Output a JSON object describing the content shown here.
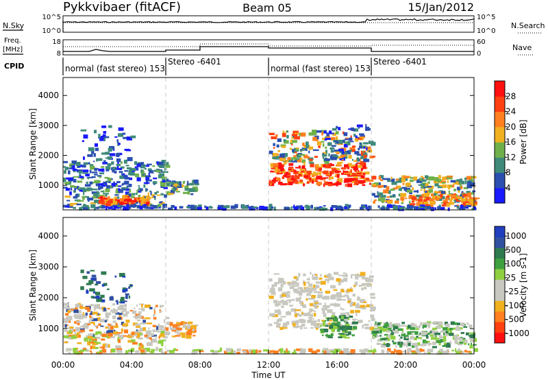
{
  "header": {
    "station": "Pykkvibaer (fitACF)",
    "beam": "Beam 05",
    "date": "15/Jan/2012"
  },
  "nsky_panel": {
    "left_label": "N.Sky",
    "left_ticks": [
      "10^5",
      "10^0"
    ],
    "right_ticks": [
      "10^5",
      "10^0"
    ],
    "right_label": "N.Search"
  },
  "freq_panel": {
    "left_label_top": "Freq.",
    "left_label_bottom": "[MHz]",
    "left_ticks": [
      "18",
      "8"
    ],
    "right_ticks": [
      "60",
      "0"
    ],
    "right_label": "Nave"
  },
  "cpid_panel": {
    "label": "CPID",
    "segments": [
      {
        "text": "normal (fast stereo) 153"
      },
      {
        "text": "Stereo -6401"
      },
      {
        "text": "normal (fast stereo) 153"
      },
      {
        "text": "Stereo -6401"
      }
    ]
  },
  "colors": {
    "power_scale": [
      "#1a1aff",
      "#2a4fb0",
      "#3f8a7a",
      "#6fb04a",
      "#f0b020",
      "#ff8020",
      "#ff4010",
      "#ff1010"
    ],
    "velocity_scale": [
      "#ff1010",
      "#ff4010",
      "#ff8020",
      "#f0b020",
      "#c8c8c0",
      "#c8c8c0",
      "#8fd040",
      "#3fa040",
      "#2f7a50",
      "#3050a0",
      "#2040c0"
    ],
    "dashed_line": "#c8c8c8"
  },
  "chart_data": [
    {
      "type": "heatmap",
      "title": "",
      "xlabel": "Time UT",
      "ylabel": "Slant Range [km]",
      "x_ticks": [
        "00:00",
        "04:00",
        "08:00",
        "12:00",
        "16:00",
        "20:00",
        "00:00"
      ],
      "xlim_hours": [
        0,
        24
      ],
      "y_ticks": [
        "1000",
        "2000",
        "3000",
        "4000"
      ],
      "ylim_km": [
        180,
        4600
      ],
      "colorbar": {
        "label": "Power [dB]",
        "ticks": [
          "4",
          "8",
          "12",
          "16",
          "20",
          "24",
          "28"
        ],
        "range": [
          0,
          32
        ]
      },
      "mode_boundaries_hours": [
        6,
        12,
        18
      ]
    },
    {
      "type": "heatmap",
      "title": "",
      "xlabel": "Time UT",
      "ylabel": "Slant Range [km]",
      "x_ticks": [
        "00:00",
        "04:00",
        "08:00",
        "12:00",
        "16:00",
        "20:00",
        "00:00"
      ],
      "xlim_hours": [
        0,
        24
      ],
      "y_ticks": [
        "1000",
        "2000",
        "3000",
        "4000"
      ],
      "ylim_km": [
        180,
        4600
      ],
      "colorbar": {
        "label": "Velocity [m s-1]",
        "ticks": [
          "1000",
          "500",
          "100",
          "25",
          "-25",
          "-100",
          "-500",
          "-1000"
        ]
      },
      "mode_boundaries_hours": [
        6,
        12,
        18
      ]
    }
  ]
}
